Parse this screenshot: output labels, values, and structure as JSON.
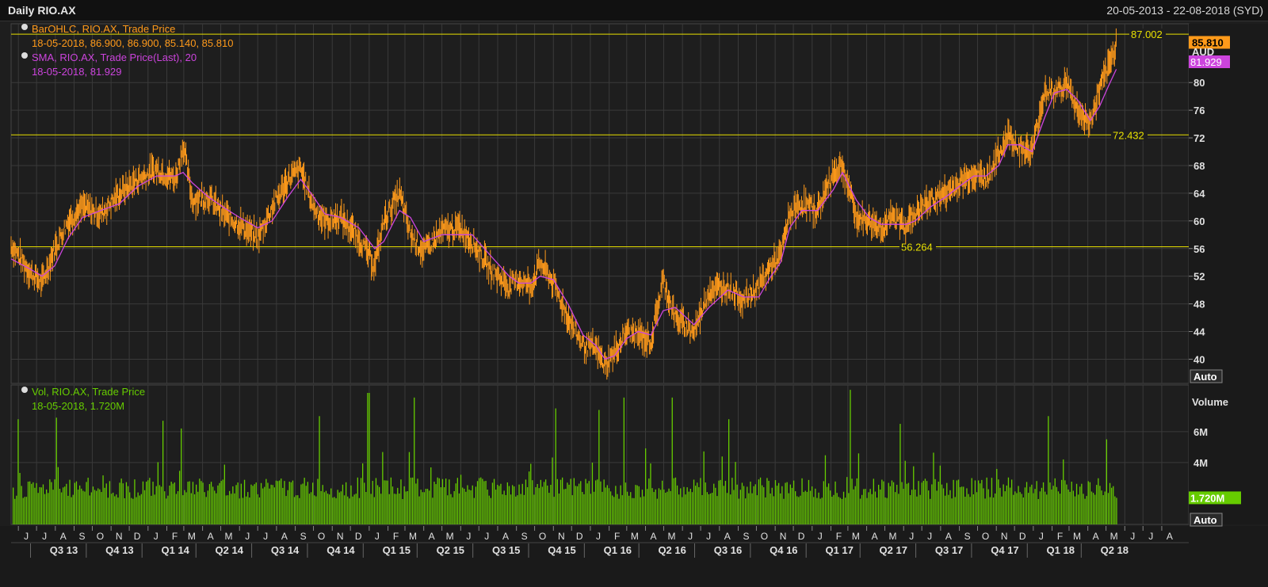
{
  "header": {
    "title": "Daily RIO.AX",
    "date_range": "20-05-2013 - 22-08-2018 (SYD)"
  },
  "colors": {
    "price": "#ff9a1a",
    "sma": "#cc44dd",
    "volume": "#66cc00",
    "hline": "#e8e000",
    "grid": "#3a3a3a",
    "axis_text": "#e0e0e0"
  },
  "price_legend": {
    "line1": "BarOHLC, RIO.AX, Trade Price",
    "line2": "18-05-2018, 86.900, 86.900, 85.140, 85.810",
    "line3": "SMA, RIO.AX, Trade Price(Last),  20",
    "line4": "18-05-2018, 81.929"
  },
  "volume_legend": {
    "line1": "Vol, RIO.AX, Trade Price",
    "line2": "18-05-2018, 1.720M"
  },
  "price_axis": {
    "currency": "AUD",
    "last_price": "85.810",
    "last_sma": "81.929",
    "auto": "Auto"
  },
  "volume_axis": {
    "title": "Volume",
    "last_volume": "1.720M",
    "auto": "Auto"
  },
  "chart_data": [
    {
      "type": "line",
      "panel": "price",
      "ylabel": "AUD",
      "ylim": [
        36.5,
        88.5
      ],
      "yticks": [
        40,
        44,
        48,
        52,
        56,
        60,
        64,
        68,
        72,
        76,
        80
      ],
      "horizontal_lines": [
        {
          "value": 87.002,
          "label": "87.002"
        },
        {
          "value": 72.432,
          "label": "72.432"
        },
        {
          "value": 56.264,
          "label": "56.264"
        }
      ],
      "x": [
        "2013-05-20",
        "2013-06-21",
        "2013-07-10",
        "2013-07-31",
        "2013-08-22",
        "2013-09-15",
        "2013-10-15",
        "2013-11-15",
        "2013-12-15",
        "2014-01-15",
        "2014-02-15",
        "2014-02-28",
        "2014-03-15",
        "2014-04-10",
        "2014-05-05",
        "2014-06-01",
        "2014-07-01",
        "2014-07-25",
        "2014-08-20",
        "2014-09-10",
        "2014-10-01",
        "2014-10-20",
        "2014-11-15",
        "2014-12-15",
        "2015-01-10",
        "2015-01-25",
        "2015-02-20",
        "2015-03-10",
        "2015-04-01",
        "2015-05-01",
        "2015-06-01",
        "2015-06-20",
        "2015-07-20",
        "2015-08-20",
        "2015-09-05",
        "2015-09-25",
        "2015-10-10",
        "2015-11-01",
        "2015-11-25",
        "2015-12-20",
        "2016-01-10",
        "2016-01-25",
        "2016-02-10",
        "2016-03-01",
        "2016-03-20",
        "2016-04-10",
        "2016-04-30",
        "2016-05-20",
        "2016-06-20",
        "2016-07-15",
        "2016-08-15",
        "2016-09-10",
        "2016-10-05",
        "2016-10-25",
        "2016-11-10",
        "2016-11-25",
        "2016-12-15",
        "2017-01-10",
        "2017-02-05",
        "2017-02-20",
        "2017-03-15",
        "2017-04-05",
        "2017-04-25",
        "2017-05-15",
        "2017-06-05",
        "2017-06-20",
        "2017-07-15",
        "2017-08-10",
        "2017-09-01",
        "2017-09-25",
        "2017-10-15",
        "2017-11-05",
        "2017-11-20",
        "2017-12-10",
        "2017-12-30",
        "2018-01-20",
        "2018-02-05",
        "2018-02-25",
        "2018-03-15",
        "2018-04-05",
        "2018-04-20",
        "2018-05-05",
        "2018-05-18"
      ],
      "series": [
        {
          "name": "BarOHLC",
          "values": [
            56.5,
            52.5,
            51.0,
            56.0,
            60.0,
            62.0,
            61.0,
            64.0,
            66.0,
            67.5,
            66.0,
            71.0,
            63.0,
            63.5,
            61.0,
            59.5,
            57.5,
            62.0,
            66.0,
            67.5,
            62.0,
            60.0,
            60.5,
            57.5,
            53.5,
            60.0,
            64.0,
            58.0,
            55.5,
            58.5,
            59.0,
            57.0,
            53.0,
            50.5,
            51.5,
            50.5,
            54.0,
            51.0,
            46.0,
            42.0,
            41.5,
            39.0,
            41.0,
            44.0,
            43.5,
            42.5,
            51.5,
            46.0,
            44.0,
            50.0,
            50.5,
            48.5,
            50.5,
            53.5,
            55.0,
            61.0,
            62.5,
            61.5,
            67.0,
            68.0,
            60.5,
            60.0,
            59.0,
            60.5,
            59.5,
            61.0,
            63.0,
            64.0,
            65.5,
            67.0,
            66.0,
            69.5,
            72.5,
            70.5,
            70.0,
            79.0,
            78.5,
            80.0,
            76.0,
            74.0,
            79.0,
            82.0,
            85.8
          ]
        },
        {
          "name": "SMA",
          "values": [
            54.5,
            53.0,
            52.0,
            53.5,
            57.5,
            60.5,
            61.5,
            62.5,
            65.0,
            66.5,
            66.5,
            67.0,
            65.5,
            63.5,
            62.0,
            60.5,
            59.0,
            60.0,
            63.5,
            66.0,
            63.5,
            61.0,
            60.5,
            59.0,
            56.0,
            57.0,
            61.5,
            60.5,
            57.0,
            58.0,
            58.0,
            58.0,
            55.0,
            52.0,
            51.0,
            51.0,
            52.0,
            51.5,
            48.0,
            43.5,
            42.0,
            40.0,
            40.5,
            43.0,
            44.0,
            43.5,
            47.0,
            47.5,
            45.0,
            47.5,
            50.0,
            49.0,
            49.0,
            52.0,
            54.0,
            59.0,
            61.5,
            61.5,
            64.5,
            67.0,
            63.0,
            60.5,
            59.5,
            59.5,
            59.5,
            60.0,
            62.0,
            63.5,
            65.0,
            66.5,
            66.5,
            68.0,
            71.0,
            71.0,
            70.0,
            75.0,
            78.5,
            79.0,
            77.5,
            74.5,
            76.5,
            79.5,
            81.929
          ]
        }
      ]
    },
    {
      "type": "bar",
      "panel": "volume",
      "ylabel": "Volume",
      "ylim": [
        0,
        8.5
      ],
      "yticks": [
        "4M",
        "6M"
      ],
      "values_unit": "M",
      "last": 1.72,
      "baseline": 2.2,
      "spikes": [
        {
          "date": "2013-06-01",
          "value": 6.8
        },
        {
          "date": "2013-08-01",
          "value": 6.9
        },
        {
          "date": "2014-01-25",
          "value": 6.7
        },
        {
          "date": "2014-02-25",
          "value": 6.2
        },
        {
          "date": "2014-10-10",
          "value": 7.0
        },
        {
          "date": "2014-12-30",
          "value": 8.5
        },
        {
          "date": "2015-03-15",
          "value": 8.2
        },
        {
          "date": "2015-11-05",
          "value": 7.5
        },
        {
          "date": "2016-01-15",
          "value": 7.4
        },
        {
          "date": "2016-02-25",
          "value": 8.2
        },
        {
          "date": "2016-05-15",
          "value": 8.2
        },
        {
          "date": "2016-08-15",
          "value": 6.8
        },
        {
          "date": "2017-03-05",
          "value": 8.7
        },
        {
          "date": "2017-05-25",
          "value": 6.5
        },
        {
          "date": "2018-01-25",
          "value": 7.0
        },
        {
          "date": "2018-05-01",
          "value": 5.5
        }
      ]
    }
  ],
  "x_axis": {
    "months": [
      {
        "label": "J",
        "date": "2013-06-01"
      },
      {
        "label": "J",
        "date": "2013-07-01"
      },
      {
        "label": "A",
        "date": "2013-08-01"
      },
      {
        "label": "S",
        "date": "2013-09-01"
      },
      {
        "label": "O",
        "date": "2013-10-01"
      },
      {
        "label": "N",
        "date": "2013-11-01"
      },
      {
        "label": "D",
        "date": "2013-12-01"
      },
      {
        "label": "J",
        "date": "2014-01-01"
      },
      {
        "label": "F",
        "date": "2014-02-01"
      },
      {
        "label": "M",
        "date": "2014-03-01"
      },
      {
        "label": "A",
        "date": "2014-04-01"
      },
      {
        "label": "M",
        "date": "2014-05-01"
      },
      {
        "label": "J",
        "date": "2014-06-01"
      },
      {
        "label": "J",
        "date": "2014-07-01"
      },
      {
        "label": "A",
        "date": "2014-08-01"
      },
      {
        "label": "S",
        "date": "2014-09-01"
      },
      {
        "label": "O",
        "date": "2014-10-01"
      },
      {
        "label": "N",
        "date": "2014-11-01"
      },
      {
        "label": "D",
        "date": "2014-12-01"
      },
      {
        "label": "J",
        "date": "2015-01-01"
      },
      {
        "label": "F",
        "date": "2015-02-01"
      },
      {
        "label": "M",
        "date": "2015-03-01"
      },
      {
        "label": "A",
        "date": "2015-04-01"
      },
      {
        "label": "M",
        "date": "2015-05-01"
      },
      {
        "label": "J",
        "date": "2015-06-01"
      },
      {
        "label": "J",
        "date": "2015-07-01"
      },
      {
        "label": "A",
        "date": "2015-08-01"
      },
      {
        "label": "S",
        "date": "2015-09-01"
      },
      {
        "label": "O",
        "date": "2015-10-01"
      },
      {
        "label": "N",
        "date": "2015-11-01"
      },
      {
        "label": "D",
        "date": "2015-12-01"
      },
      {
        "label": "J",
        "date": "2016-01-01"
      },
      {
        "label": "F",
        "date": "2016-02-01"
      },
      {
        "label": "M",
        "date": "2016-03-01"
      },
      {
        "label": "A",
        "date": "2016-04-01"
      },
      {
        "label": "M",
        "date": "2016-05-01"
      },
      {
        "label": "J",
        "date": "2016-06-01"
      },
      {
        "label": "J",
        "date": "2016-07-01"
      },
      {
        "label": "A",
        "date": "2016-08-01"
      },
      {
        "label": "S",
        "date": "2016-09-01"
      },
      {
        "label": "O",
        "date": "2016-10-01"
      },
      {
        "label": "N",
        "date": "2016-11-01"
      },
      {
        "label": "D",
        "date": "2016-12-01"
      },
      {
        "label": "J",
        "date": "2017-01-01"
      },
      {
        "label": "F",
        "date": "2017-02-01"
      },
      {
        "label": "M",
        "date": "2017-03-01"
      },
      {
        "label": "A",
        "date": "2017-04-01"
      },
      {
        "label": "M",
        "date": "2017-05-01"
      },
      {
        "label": "J",
        "date": "2017-06-01"
      },
      {
        "label": "J",
        "date": "2017-07-01"
      },
      {
        "label": "A",
        "date": "2017-08-01"
      },
      {
        "label": "S",
        "date": "2017-09-01"
      },
      {
        "label": "O",
        "date": "2017-10-01"
      },
      {
        "label": "N",
        "date": "2017-11-01"
      },
      {
        "label": "D",
        "date": "2017-12-01"
      },
      {
        "label": "J",
        "date": "2018-01-01"
      },
      {
        "label": "F",
        "date": "2018-02-01"
      },
      {
        "label": "M",
        "date": "2018-03-01"
      },
      {
        "label": "A",
        "date": "2018-04-01"
      },
      {
        "label": "M",
        "date": "2018-05-01"
      },
      {
        "label": "J",
        "date": "2018-06-01"
      },
      {
        "label": "J",
        "date": "2018-07-01"
      },
      {
        "label": "A",
        "date": "2018-08-01"
      }
    ],
    "quarters": [
      {
        "label": "Q3 13",
        "date": "2013-08-15"
      },
      {
        "label": "Q4 13",
        "date": "2013-11-15"
      },
      {
        "label": "Q1 14",
        "date": "2014-02-15"
      },
      {
        "label": "Q2 14",
        "date": "2014-05-15"
      },
      {
        "label": "Q3 14",
        "date": "2014-08-15"
      },
      {
        "label": "Q4 14",
        "date": "2014-11-15"
      },
      {
        "label": "Q1 15",
        "date": "2015-02-15"
      },
      {
        "label": "Q2 15",
        "date": "2015-05-15"
      },
      {
        "label": "Q3 15",
        "date": "2015-08-15"
      },
      {
        "label": "Q4 15",
        "date": "2015-11-15"
      },
      {
        "label": "Q1 16",
        "date": "2016-02-15"
      },
      {
        "label": "Q2 16",
        "date": "2016-05-15"
      },
      {
        "label": "Q3 16",
        "date": "2016-08-15"
      },
      {
        "label": "Q4 16",
        "date": "2016-11-15"
      },
      {
        "label": "Q1 17",
        "date": "2017-02-15"
      },
      {
        "label": "Q2 17",
        "date": "2017-05-15"
      },
      {
        "label": "Q3 17",
        "date": "2017-08-15"
      },
      {
        "label": "Q4 17",
        "date": "2017-11-15"
      },
      {
        "label": "Q1 18",
        "date": "2018-02-15"
      },
      {
        "label": "Q2 18",
        "date": "2018-05-15"
      }
    ]
  }
}
